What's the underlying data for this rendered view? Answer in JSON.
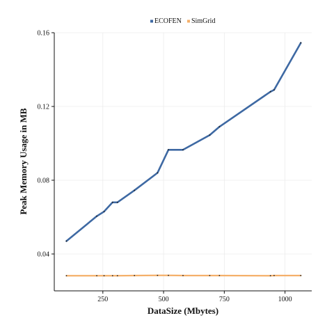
{
  "chart_data": {
    "type": "line",
    "xlabel": "DataSize (Mbytes)",
    "ylabel": "Peak Memory Usage in MB",
    "xlim": [
      50,
      1110
    ],
    "ylim": [
      0.02,
      0.16
    ],
    "xticks": [
      250,
      500,
      750,
      1000
    ],
    "yticks": [
      0.04,
      0.08,
      0.12,
      0.16
    ],
    "xtick_labels": [
      "250",
      "500",
      "750",
      "1000"
    ],
    "ytick_labels": [
      "0.04",
      "0.08",
      "0.12",
      "0.16"
    ],
    "grid": true,
    "legend_position": "top-center",
    "series": [
      {
        "name": "ECOFEN",
        "color": "#3e69a3",
        "x": [
          100,
          225,
          255,
          290,
          310,
          380,
          475,
          520,
          580,
          690,
          730,
          940,
          955,
          1065
        ],
        "y": [
          0.047,
          0.0605,
          0.063,
          0.068,
          0.068,
          0.0745,
          0.084,
          0.0965,
          0.0965,
          0.1045,
          0.109,
          0.128,
          0.129,
          0.1545
        ]
      },
      {
        "name": "SimGrid",
        "color": "#f5b06a",
        "x": [
          100,
          225,
          255,
          290,
          310,
          380,
          475,
          520,
          580,
          690,
          730,
          940,
          955,
          1065
        ],
        "y": [
          0.0282,
          0.0282,
          0.0282,
          0.0282,
          0.0282,
          0.0283,
          0.0284,
          0.0284,
          0.0283,
          0.0283,
          0.0283,
          0.0282,
          0.0283,
          0.0283
        ]
      }
    ]
  }
}
